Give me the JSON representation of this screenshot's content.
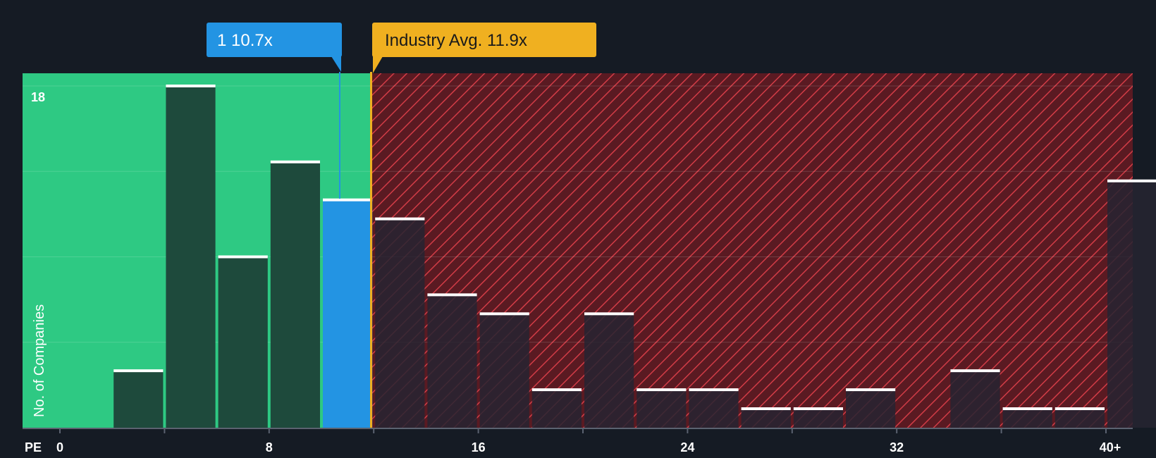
{
  "chart_data": {
    "type": "bar",
    "title": "",
    "xlabel": "PE",
    "ylabel": "No. of Companies",
    "x_ticks": [
      "0",
      "8",
      "16",
      "24",
      "32",
      "40+"
    ],
    "y_ticks": [
      "18"
    ],
    "ylim": [
      0,
      18
    ],
    "bins": [
      {
        "range": [
          0,
          2
        ],
        "value": 0
      },
      {
        "range": [
          2,
          4
        ],
        "value": 3
      },
      {
        "range": [
          4,
          6
        ],
        "value": 18
      },
      {
        "range": [
          6,
          8
        ],
        "value": 9
      },
      {
        "range": [
          8,
          10
        ],
        "value": 14
      },
      {
        "range": [
          10,
          12
        ],
        "value": 12,
        "highlighted": true
      },
      {
        "range": [
          12,
          14
        ],
        "value": 11
      },
      {
        "range": [
          14,
          16
        ],
        "value": 7
      },
      {
        "range": [
          16,
          18
        ],
        "value": 6
      },
      {
        "range": [
          18,
          20
        ],
        "value": 2
      },
      {
        "range": [
          20,
          22
        ],
        "value": 6
      },
      {
        "range": [
          22,
          24
        ],
        "value": 2
      },
      {
        "range": [
          24,
          26
        ],
        "value": 2
      },
      {
        "range": [
          26,
          28
        ],
        "value": 1
      },
      {
        "range": [
          28,
          30
        ],
        "value": 1
      },
      {
        "range": [
          30,
          32
        ],
        "value": 2
      },
      {
        "range": [
          32,
          34
        ],
        "value": 0
      },
      {
        "range": [
          34,
          36
        ],
        "value": 3
      },
      {
        "range": [
          36,
          38
        ],
        "value": 1
      },
      {
        "range": [
          38,
          40
        ],
        "value": 1
      },
      {
        "range": [
          40,
          42
        ],
        "value": 13
      }
    ],
    "company_marker": {
      "label": "1 10.7x",
      "value": 10.7,
      "color": "#2394e3"
    },
    "industry_marker": {
      "label": "Industry Avg. 11.9x",
      "value": 11.9,
      "color": "#f0b020"
    },
    "grid": true
  },
  "colors": {
    "background": "#151b24",
    "good_zone": "#2ec983",
    "bad_zone": "#5a1a22",
    "bad_hatch": "#d23c46",
    "bar_good": "#1e4a3c",
    "bar_bad": "#262431",
    "bar_highlight": "#2394e3",
    "bar_cap": "#ffffff"
  }
}
